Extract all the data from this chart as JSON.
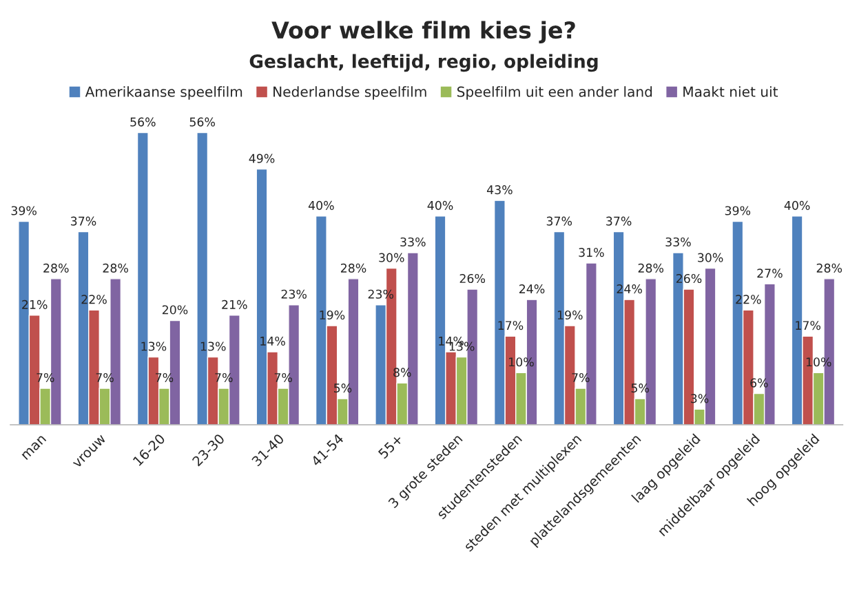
{
  "chart_data": {
    "type": "bar",
    "title": "Voor welke film kies je?",
    "subtitle": "Geslacht, leeftijd, regio, opleiding",
    "categories": [
      "man",
      "vrouw",
      "16-20",
      "23-30",
      "31-40",
      "41-54",
      "55+",
      "3 grote steden",
      "studentensteden",
      "steden met multiplexen",
      "plattelandsgemeenten",
      "laag opgeleid",
      "middelbaar opgeleid",
      "hoog opgeleid"
    ],
    "series": [
      {
        "name": "Amerikaanse speelfilm",
        "color": "#4f81bd",
        "values": [
          39,
          37,
          56,
          56,
          49,
          40,
          23,
          40,
          43,
          37,
          37,
          33,
          39,
          40
        ],
        "value_labels": [
          "39%",
          "37%",
          "56%",
          "56%",
          "49%",
          "40%",
          "23%",
          "40%",
          "43%",
          "37%",
          "37%",
          "33%",
          "39%",
          "40%"
        ]
      },
      {
        "name": "Nederlandse speelfilm",
        "color": "#c0504d",
        "values": [
          21,
          22,
          13,
          13,
          14,
          19,
          30,
          14,
          17,
          19,
          24,
          26,
          22,
          17
        ],
        "value_labels": [
          "21%",
          "22%",
          "13%",
          "13%",
          "14%",
          "19%",
          "30%",
          "14%",
          "17%",
          "19%",
          "24%",
          "26%",
          "22%",
          "17%"
        ]
      },
      {
        "name": "Speelfilm uit een ander land",
        "color": "#9bbb59",
        "values": [
          7,
          7,
          7,
          7,
          7,
          5,
          8,
          13,
          10,
          7,
          5,
          3,
          6,
          10
        ],
        "value_labels": [
          "7%",
          "7%",
          "7%",
          "7%",
          "7%",
          "5%",
          "8%",
          "13%",
          "10%",
          "7%",
          "5%",
          "3%",
          "6%",
          "10%"
        ]
      },
      {
        "name": "Maakt niet uit",
        "color": "#8064a2",
        "values": [
          28,
          28,
          20,
          21,
          23,
          28,
          33,
          26,
          24,
          31,
          28,
          30,
          27,
          28
        ],
        "value_labels": [
          "28%",
          "28%",
          "20%",
          "21%",
          "23%",
          "28%",
          "33%",
          "26%",
          "24%",
          "31%",
          "28%",
          "30%",
          "27%",
          "28%"
        ]
      }
    ],
    "legend": "top",
    "grid": false,
    "tick_labels": "x"
  }
}
